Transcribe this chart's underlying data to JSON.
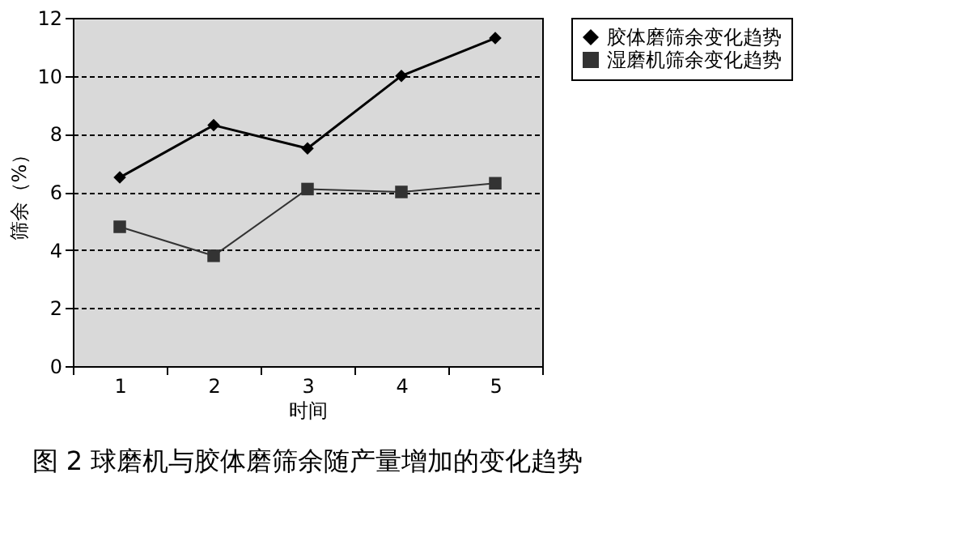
{
  "chart_data": {
    "type": "line",
    "title": "图 2 球磨机与胶体磨筛余随产量增加的变化趋势",
    "xlabel": "时间",
    "ylabel": "筛余（%）",
    "categories": [
      "1",
      "2",
      "3",
      "4",
      "5"
    ],
    "series": [
      {
        "name": "胶体磨筛余变化趋势",
        "color": "#000000",
        "marker": "diamond",
        "values": [
          6.5,
          8.3,
          7.5,
          10.0,
          11.3
        ]
      },
      {
        "name": "湿磨机筛余变化趋势",
        "color": "#333333",
        "marker": "square",
        "values": [
          4.8,
          3.8,
          6.1,
          6.0,
          6.3
        ]
      }
    ],
    "ylim": [
      0,
      12
    ],
    "yticks": [
      0,
      2,
      4,
      6,
      8,
      10,
      12
    ],
    "grid": "y",
    "legend": "right",
    "line_style": "solid"
  }
}
